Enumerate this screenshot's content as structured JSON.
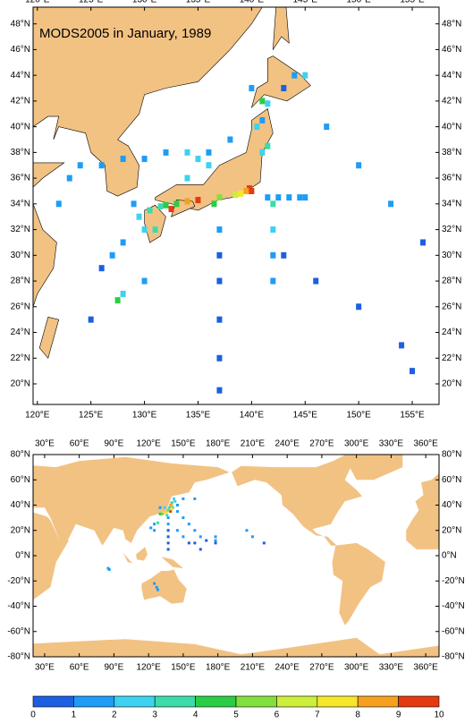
{
  "chart_data": [
    {
      "type": "grid-map",
      "title": "MODS2005 in January, 1989",
      "xlim": [
        119.6,
        157.5
      ],
      "ylim": [
        18.4,
        49.3
      ],
      "xticks": [
        {
          "value": 120,
          "label": "120°E"
        },
        {
          "value": 125,
          "label": "125°E"
        },
        {
          "value": 130,
          "label": "130°E"
        },
        {
          "value": 135,
          "label": "135°E"
        },
        {
          "value": 140,
          "label": "140°E"
        },
        {
          "value": 145,
          "label": "145°E"
        },
        {
          "value": 150,
          "label": "150°E"
        },
        {
          "value": 155,
          "label": "155°E"
        }
      ],
      "yticks": [
        {
          "value": 20,
          "label": "20°N"
        },
        {
          "value": 22,
          "label": "22°N"
        },
        {
          "value": 24,
          "label": "24°N"
        },
        {
          "value": 26,
          "label": "26°N"
        },
        {
          "value": 28,
          "label": "28°N"
        },
        {
          "value": 30,
          "label": "30°N"
        },
        {
          "value": 32,
          "label": "32°N"
        },
        {
          "value": 34,
          "label": "34°N"
        },
        {
          "value": 36,
          "label": "36°N"
        },
        {
          "value": 38,
          "label": "38°N"
        },
        {
          "value": 40,
          "label": "40°N"
        },
        {
          "value": 42,
          "label": "42°N"
        },
        {
          "value": 44,
          "label": "44°N"
        },
        {
          "value": 46,
          "label": "46°N"
        },
        {
          "value": 48,
          "label": "48°N"
        }
      ],
      "cells": {
        "lon": [
          139.8,
          139.5,
          140,
          139,
          138.5,
          137,
          136.5,
          135,
          134,
          133,
          132,
          131.5,
          132.5,
          130.5,
          131,
          130,
          129.5,
          141,
          141.5,
          135,
          136,
          141,
          141.5,
          140,
          143,
          144,
          145,
          127.5,
          128,
          130,
          125,
          137,
          137,
          137,
          137,
          137,
          137,
          142,
          142,
          142,
          142,
          143,
          146,
          150,
          154,
          155,
          141.5,
          142.5,
          143.5,
          144.5,
          145,
          134,
          132,
          130,
          128,
          126,
          124,
          123,
          122,
          140.5,
          141,
          138,
          136,
          134,
          129,
          128,
          127,
          126,
          147,
          150,
          153,
          156
        ],
        "lat": [
          35.2,
          35,
          35,
          34.8,
          34.7,
          34.5,
          34,
          34.3,
          34.2,
          34,
          33.9,
          33.8,
          33.6,
          33.5,
          32,
          32,
          33,
          38,
          38.5,
          37.5,
          37,
          42,
          41.8,
          43,
          43,
          44,
          44,
          26.5,
          27,
          28,
          25,
          32,
          30,
          28,
          25,
          22,
          19.5,
          34,
          32,
          30,
          28,
          30,
          28,
          26,
          23,
          21,
          34.5,
          34.5,
          34.5,
          34.5,
          34.5,
          38,
          38,
          37.5,
          37.5,
          37,
          37,
          36,
          34,
          40,
          40.5,
          39,
          38,
          36,
          34,
          31,
          30,
          29,
          40,
          37,
          34,
          31
        ],
        "values": [
          9,
          8,
          9.5,
          7,
          6,
          5,
          4,
          9,
          8,
          4,
          4.5,
          3,
          9,
          3,
          3,
          2,
          2,
          2,
          3,
          2.5,
          2.5,
          4.5,
          2,
          1,
          0.5,
          1,
          2,
          4,
          2,
          1,
          0.5,
          1,
          0.5,
          0.5,
          0.5,
          0.5,
          0.5,
          3,
          2,
          1,
          1,
          0.5,
          0.5,
          0.5,
          0.5,
          0.5,
          1,
          1,
          1,
          1,
          1,
          2,
          1,
          1,
          1,
          1,
          1,
          1,
          1,
          2,
          1,
          1,
          1,
          2,
          1,
          1,
          1,
          0.5,
          1,
          1,
          1,
          0.5
        ]
      }
    },
    {
      "type": "grid-map",
      "xlim": [
        20,
        371.5
      ],
      "ylim": [
        -80,
        80
      ],
      "xticks": [
        {
          "value": 30,
          "label": "30°E"
        },
        {
          "value": 60,
          "label": "60°E"
        },
        {
          "value": 90,
          "label": "90°E"
        },
        {
          "value": 120,
          "label": "120°E"
        },
        {
          "value": 150,
          "label": "150°E"
        },
        {
          "value": 180,
          "label": "180°E"
        },
        {
          "value": 210,
          "label": "210°E"
        },
        {
          "value": 240,
          "label": "240°E"
        },
        {
          "value": 270,
          "label": "270°E"
        },
        {
          "value": 300,
          "label": "300°E"
        },
        {
          "value": 330,
          "label": "330°E"
        },
        {
          "value": 360,
          "label": "360°E"
        }
      ],
      "yticks": [
        {
          "value": -80,
          "label": "-80°N"
        },
        {
          "value": -60,
          "label": "-60°N"
        },
        {
          "value": -40,
          "label": "-40°N"
        },
        {
          "value": -20,
          "label": "-20°N"
        },
        {
          "value": 0,
          "label": "0°N"
        },
        {
          "value": 20,
          "label": "20°N"
        },
        {
          "value": 40,
          "label": "40°N"
        },
        {
          "value": 60,
          "label": "60°N"
        },
        {
          "value": 80,
          "label": "80°N"
        }
      ],
      "cells": {
        "lon": [
          139,
          135,
          132,
          130,
          141,
          140,
          128,
          137,
          137,
          137,
          137,
          137,
          137,
          125,
          125,
          122,
          150,
          155,
          160,
          165,
          170,
          178,
          145,
          150,
          155,
          160,
          165,
          210,
          205,
          220,
          178,
          178,
          145,
          150,
          160,
          85,
          86,
          125,
          127,
          128,
          142,
          143,
          130,
          145,
          138,
          136,
          134,
          140,
          139,
          137
        ],
        "lat": [
          35,
          34,
          33,
          33,
          38,
          42,
          26,
          30,
          25,
          20,
          15,
          10,
          5,
          25,
          20,
          22,
          30,
          25,
          20,
          15,
          12,
          10,
          20,
          15,
          10,
          10,
          5,
          15,
          20,
          10,
          12,
          15,
          40,
          45,
          45,
          -10,
          -11,
          -22,
          -25,
          -27,
          45,
          43,
          38,
          35,
          38,
          32,
          38,
          37,
          40,
          36
        ],
        "values": [
          9,
          7,
          5,
          4,
          3,
          3,
          3,
          1,
          1,
          0.5,
          0.5,
          0.5,
          0.5,
          1,
          1,
          1,
          1,
          1,
          1,
          1,
          0.5,
          0.5,
          1,
          1,
          0.5,
          0.5,
          0.5,
          1,
          1,
          0.5,
          1,
          1,
          1,
          1,
          1,
          1,
          1,
          1,
          1,
          1,
          2,
          2,
          1,
          1,
          2,
          3,
          2,
          7,
          8,
          5
        ]
      }
    }
  ],
  "colorbar": {
    "ticks": [
      0,
      1,
      2,
      3,
      4,
      5,
      6,
      7,
      8,
      9,
      10
    ],
    "colors": [
      "#1c5fe0",
      "#1f9cf5",
      "#3cd2f0",
      "#3cdcaa",
      "#2acd45",
      "#82e03e",
      "#cdee3a",
      "#f6e62c",
      "#f6a020",
      "#e43a12"
    ]
  }
}
